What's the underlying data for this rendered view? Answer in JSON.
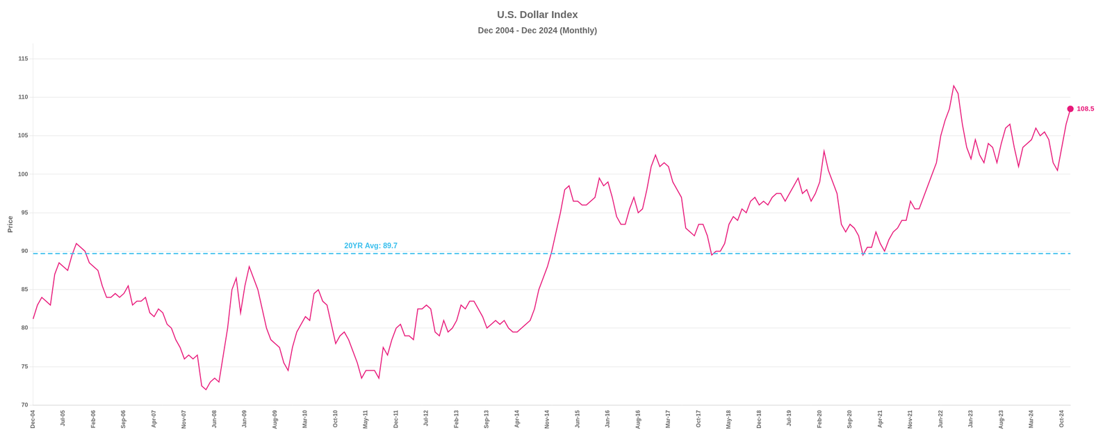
{
  "chart_data": {
    "type": "line",
    "title": "U.S. Dollar Index",
    "subtitle": "Dec 2004 - Dec 2024 (Monthly)",
    "ylabel": "Price",
    "color": "#e8197a",
    "ylim": [
      70,
      117
    ],
    "yticks": [
      70,
      75,
      80,
      85,
      90,
      95,
      100,
      105,
      110,
      115
    ],
    "grid": true,
    "annotations": [
      {
        "text": "20YR Avg: 89.7",
        "y": 89.7,
        "color": "#3bbfed",
        "line_style": "dashed"
      },
      {
        "text": "108.5",
        "y": 108.5,
        "color": "#e8197a"
      }
    ],
    "categories": [
      "Dec-04",
      null,
      null,
      null,
      null,
      null,
      null,
      "Jul-05",
      null,
      null,
      null,
      null,
      null,
      null,
      "Feb-06",
      null,
      null,
      null,
      null,
      null,
      null,
      "Sep-06",
      null,
      null,
      null,
      null,
      null,
      null,
      "Apr-07",
      null,
      null,
      null,
      null,
      null,
      null,
      "Nov-07",
      null,
      null,
      null,
      null,
      null,
      null,
      "Jun-08",
      null,
      null,
      null,
      null,
      null,
      null,
      "Jan-09",
      null,
      null,
      null,
      null,
      null,
      null,
      "Aug-09",
      null,
      null,
      null,
      null,
      null,
      null,
      "Mar-10",
      null,
      null,
      null,
      null,
      null,
      null,
      "Oct-10",
      null,
      null,
      null,
      null,
      null,
      null,
      "May-11",
      null,
      null,
      null,
      null,
      null,
      null,
      "Dec-11",
      null,
      null,
      null,
      null,
      null,
      null,
      "Jul-12",
      null,
      null,
      null,
      null,
      null,
      null,
      "Feb-13",
      null,
      null,
      null,
      null,
      null,
      null,
      "Sep-13",
      null,
      null,
      null,
      null,
      null,
      null,
      "Apr-14",
      null,
      null,
      null,
      null,
      null,
      null,
      "Nov-14",
      null,
      null,
      null,
      null,
      null,
      null,
      "Jun-15",
      null,
      null,
      null,
      null,
      null,
      null,
      "Jan-16",
      null,
      null,
      null,
      null,
      null,
      null,
      "Aug-16",
      null,
      null,
      null,
      null,
      null,
      null,
      "Mar-17",
      null,
      null,
      null,
      null,
      null,
      null,
      "Oct-17",
      null,
      null,
      null,
      null,
      null,
      null,
      "May-18",
      null,
      null,
      null,
      null,
      null,
      null,
      "Dec-18",
      null,
      null,
      null,
      null,
      null,
      null,
      "Jul-19",
      null,
      null,
      null,
      null,
      null,
      null,
      "Feb-20",
      null,
      null,
      null,
      null,
      null,
      null,
      "Sep-20",
      null,
      null,
      null,
      null,
      null,
      null,
      "Apr-21",
      null,
      null,
      null,
      null,
      null,
      null,
      "Nov-21",
      null,
      null,
      null,
      null,
      null,
      null,
      "Jun-22",
      null,
      null,
      null,
      null,
      null,
      null,
      "Jan-23",
      null,
      null,
      null,
      null,
      null,
      null,
      "Aug-23",
      null,
      null,
      null,
      null,
      null,
      null,
      "Mar-24",
      null,
      null,
      null,
      null,
      null,
      null,
      "Oct-24",
      null,
      null
    ],
    "values": [
      81.2,
      83.0,
      84.0,
      83.5,
      83.0,
      87.0,
      88.5,
      88.0,
      87.5,
      89.5,
      91.0,
      90.5,
      90.0,
      88.5,
      88.0,
      87.5,
      85.5,
      84.0,
      84.0,
      84.5,
      84.0,
      84.5,
      85.5,
      83.0,
      83.5,
      83.5,
      84.0,
      82.0,
      81.5,
      82.5,
      82.0,
      80.5,
      80.0,
      78.5,
      77.5,
      76.0,
      76.5,
      76.0,
      76.5,
      72.5,
      72.0,
      73.0,
      73.5,
      73.0,
      76.5,
      80.0,
      85.0,
      86.5,
      82.0,
      85.5,
      88.0,
      86.5,
      85.0,
      82.5,
      80.0,
      78.5,
      78.0,
      77.5,
      75.5,
      74.5,
      77.5,
      79.5,
      80.5,
      81.5,
      81.0,
      84.5,
      85.0,
      83.5,
      83.0,
      80.5,
      78.0,
      79.0,
      79.5,
      78.5,
      77.0,
      75.5,
      73.5,
      74.5,
      74.5,
      74.5,
      73.5,
      77.5,
      76.5,
      78.5,
      80.0,
      80.5,
      79.0,
      79.0,
      78.5,
      82.5,
      82.5,
      83.0,
      82.5,
      79.5,
      79.0,
      81.0,
      79.5,
      80.0,
      81.0,
      83.0,
      82.5,
      83.5,
      83.5,
      82.5,
      81.5,
      80.0,
      80.5,
      81.0,
      80.5,
      81.0,
      80.0,
      79.5,
      79.5,
      80.0,
      80.5,
      81.0,
      82.5,
      85.0,
      86.5,
      88.0,
      90.0,
      92.5,
      95.0,
      98.0,
      98.5,
      96.5,
      96.5,
      96.0,
      96.0,
      96.5,
      97.0,
      99.5,
      98.5,
      99.0,
      97.0,
      94.5,
      93.5,
      93.5,
      95.5,
      97.0,
      95.0,
      95.5,
      98.0,
      101.0,
      102.5,
      101.0,
      101.5,
      101.0,
      99.0,
      98.0,
      97.0,
      93.0,
      92.5,
      92.0,
      93.5,
      93.5,
      92.0,
      89.5,
      90.0,
      90.0,
      91.0,
      93.5,
      94.5,
      94.0,
      95.5,
      95.0,
      96.5,
      97.0,
      96.0,
      96.5,
      96.0,
      97.0,
      97.5,
      97.5,
      96.5,
      97.5,
      98.5,
      99.5,
      97.5,
      98.0,
      96.5,
      97.5,
      99.0,
      103.0,
      100.5,
      99.0,
      97.5,
      93.5,
      92.5,
      93.5,
      93.0,
      92.0,
      89.5,
      90.5,
      90.5,
      92.5,
      91.0,
      90.0,
      91.5,
      92.5,
      93.0,
      94.0,
      94.0,
      96.5,
      95.5,
      95.5,
      97.0,
      98.5,
      100.0,
      101.5,
      105.0,
      107.0,
      108.5,
      111.5,
      110.5,
      106.5,
      103.5,
      102.0,
      104.5,
      102.5,
      101.5,
      104.0,
      103.5,
      101.5,
      104.0,
      106.0,
      106.5,
      103.5,
      101.0,
      103.5,
      104.0,
      104.5,
      106.0,
      105.0,
      105.5,
      104.5,
      101.5,
      100.5,
      103.5,
      106.5,
      108.5
    ]
  }
}
